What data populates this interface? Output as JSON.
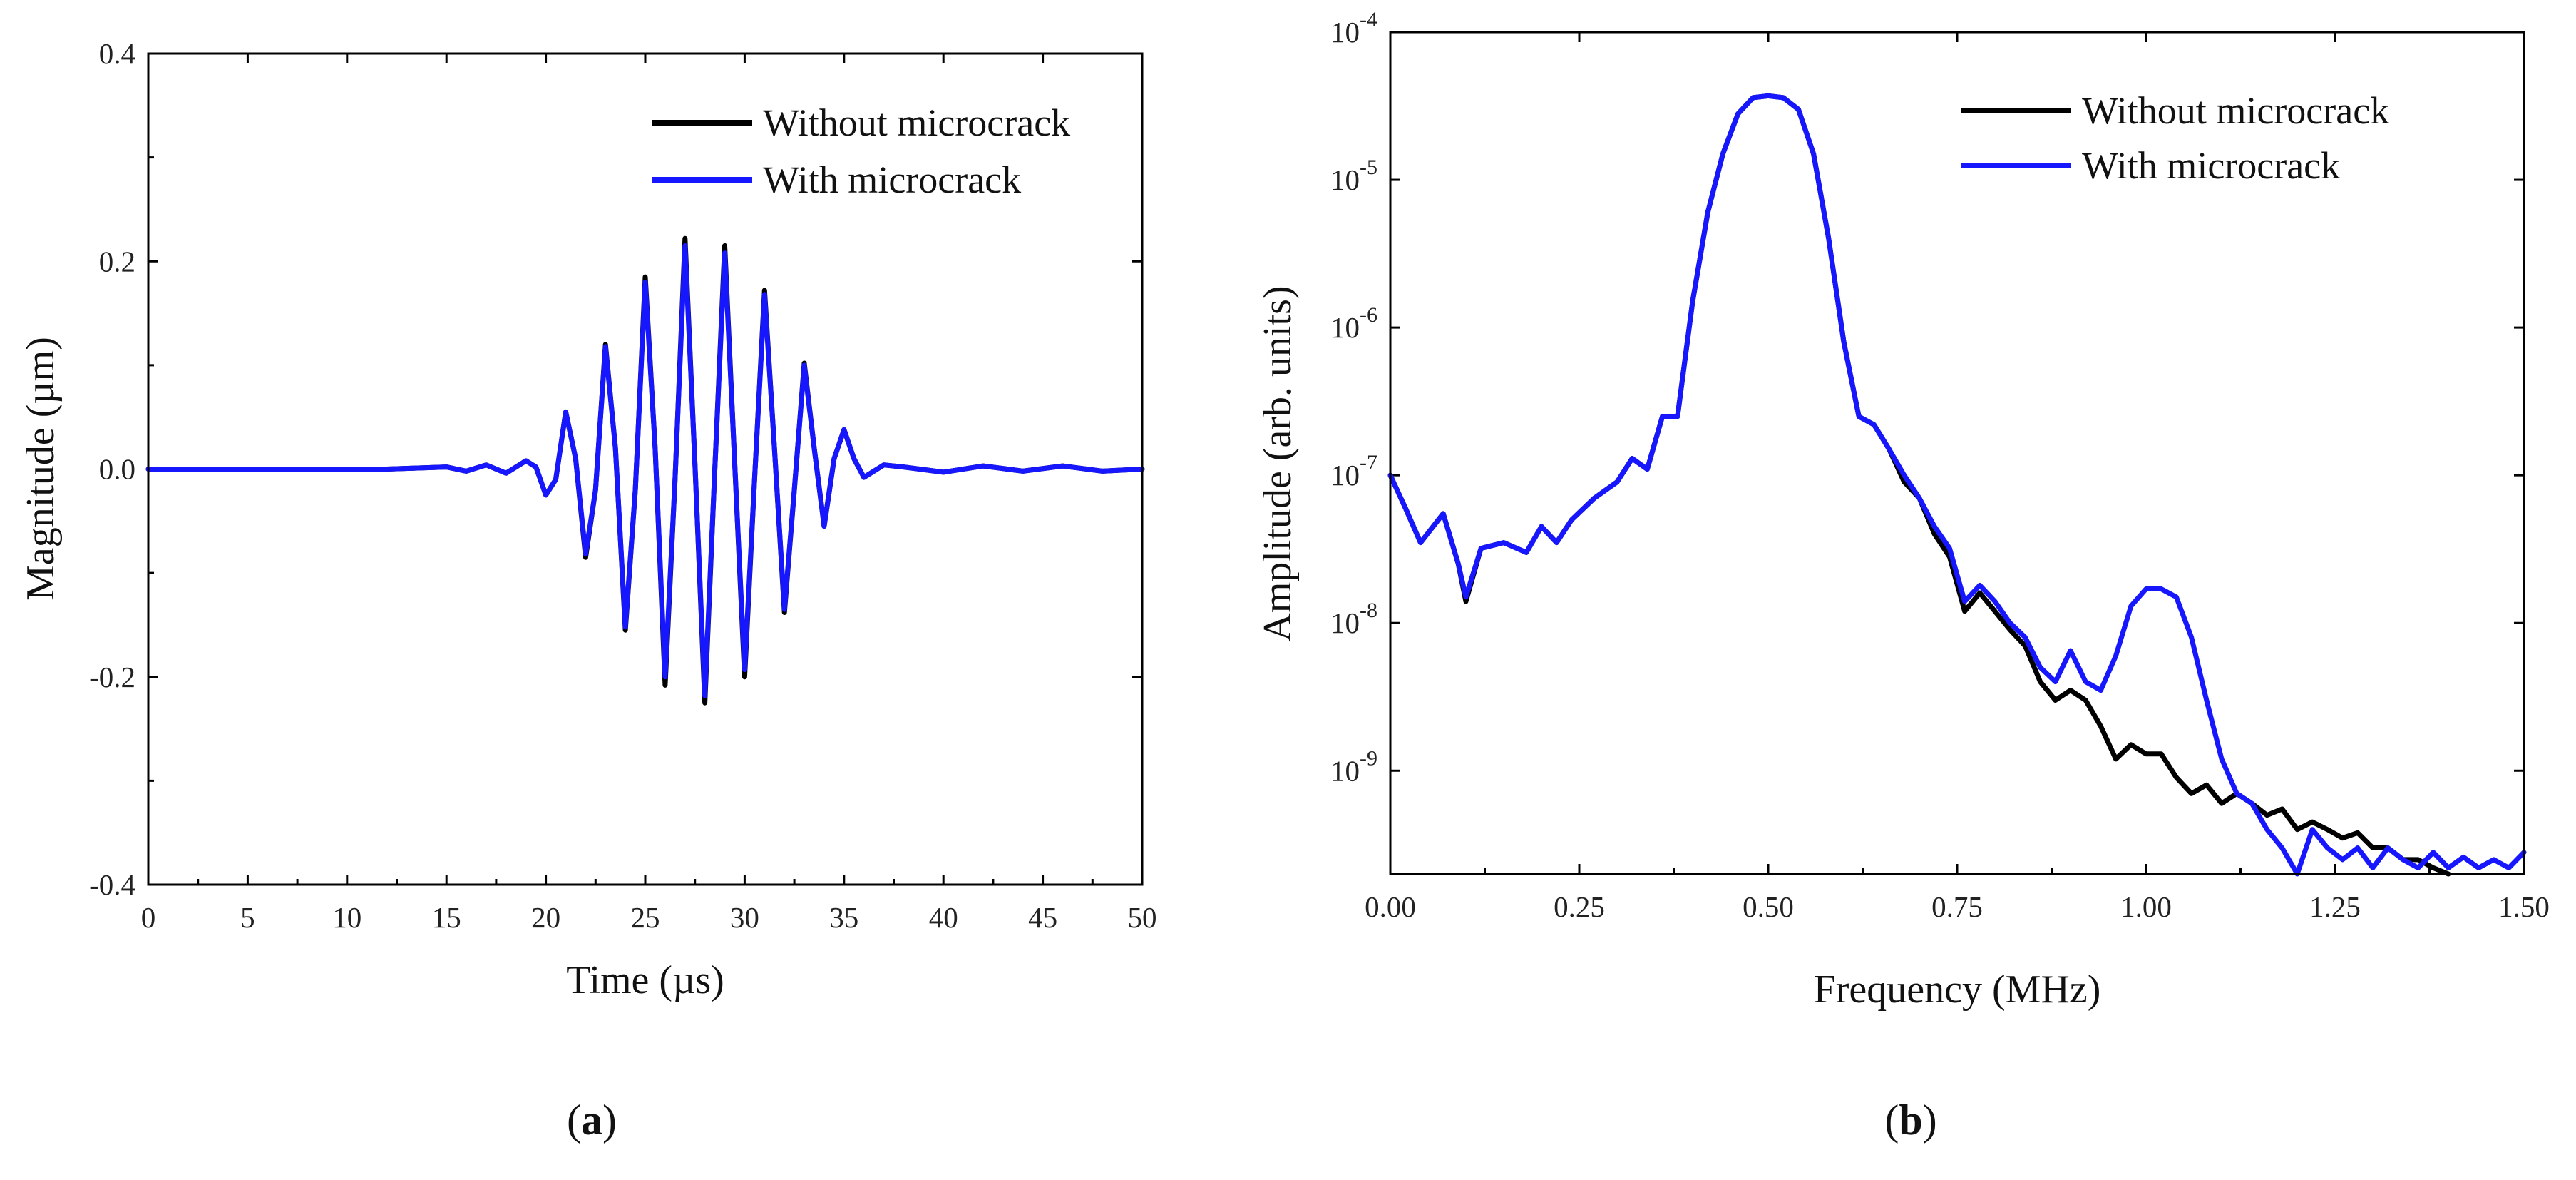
{
  "colors": {
    "series_without": "#000000",
    "series_with": "#1717ff",
    "axis": "#000000"
  },
  "chart_data": [
    {
      "id": "a",
      "caption": {
        "open": "(",
        "letter": "a",
        "close": ")"
      },
      "type": "line",
      "xlabel": "Time (µs)",
      "ylabel": "Magnitude (µm)",
      "xlim": [
        0,
        50
      ],
      "ylim": [
        -0.4,
        0.4
      ],
      "x_ticks": [
        0,
        5,
        10,
        15,
        20,
        25,
        30,
        35,
        40,
        45,
        50
      ],
      "x_tick_labels": [
        "0",
        "5",
        "10",
        "15",
        "20",
        "25",
        "30",
        "35",
        "40",
        "45",
        "50"
      ],
      "y_ticks": [
        -0.4,
        -0.2,
        0.0,
        0.2,
        0.4
      ],
      "y_tick_labels": [
        "-0.4",
        "-0.2",
        "0.0",
        "0.2",
        "0.4"
      ],
      "legend": {
        "placement": "top-right",
        "entries": [
          "Without microcrack",
          "With microcrack"
        ]
      },
      "series": [
        {
          "name": "Without microcrack",
          "color_key": "series_without",
          "x": [
            0,
            12,
            15,
            16,
            17,
            18,
            19,
            19.5,
            20,
            20.5,
            21,
            21.5,
            22,
            22.5,
            23,
            23.5,
            24,
            24.5,
            25,
            25.5,
            26,
            26.5,
            27,
            27.5,
            28,
            28.5,
            29,
            29.5,
            30,
            30.5,
            31,
            31.5,
            32,
            32.5,
            33,
            33.5,
            34,
            34.5,
            35,
            35.5,
            36,
            37,
            38,
            40,
            42,
            44,
            46,
            48,
            50
          ],
          "y": [
            0,
            0,
            0.002,
            -0.002,
            0.004,
            -0.004,
            0.008,
            0.002,
            -0.025,
            -0.01,
            0.055,
            0.01,
            -0.085,
            -0.02,
            0.12,
            0.02,
            -0.155,
            -0.02,
            0.185,
            0.02,
            -0.208,
            -0.01,
            0.222,
            0.005,
            -0.225,
            0.0,
            0.215,
            0.005,
            -0.2,
            -0.01,
            0.172,
            0.02,
            -0.138,
            -0.02,
            0.102,
            0.02,
            -0.055,
            0.01,
            0.038,
            0.01,
            -0.008,
            0.004,
            0.002,
            -0.003,
            0.003,
            -0.002,
            0.003,
            -0.002,
            0
          ]
        },
        {
          "name": "With microcrack",
          "color_key": "series_with",
          "x": [
            0,
            12,
            15,
            16,
            17,
            18,
            19,
            19.5,
            20,
            20.5,
            21,
            21.5,
            22,
            22.5,
            23,
            23.5,
            24,
            24.5,
            25,
            25.5,
            26,
            26.5,
            27,
            27.5,
            28,
            28.5,
            29,
            29.5,
            30,
            30.5,
            31,
            31.5,
            32,
            32.5,
            33,
            33.5,
            34,
            34.5,
            35,
            35.5,
            36,
            37,
            38,
            40,
            42,
            44,
            46,
            48,
            50
          ],
          "y": [
            0,
            0,
            0.002,
            -0.002,
            0.004,
            -0.004,
            0.008,
            0.002,
            -0.025,
            -0.01,
            0.055,
            0.01,
            -0.082,
            -0.02,
            0.118,
            0.02,
            -0.152,
            -0.02,
            0.18,
            0.02,
            -0.2,
            -0.01,
            0.215,
            0.005,
            -0.218,
            0.0,
            0.208,
            0.005,
            -0.193,
            -0.01,
            0.168,
            0.02,
            -0.135,
            -0.02,
            0.1,
            0.02,
            -0.055,
            0.01,
            0.038,
            0.01,
            -0.008,
            0.004,
            0.002,
            -0.003,
            0.003,
            -0.002,
            0.003,
            -0.002,
            0
          ]
        }
      ]
    },
    {
      "id": "b",
      "caption": {
        "open": "(",
        "letter": "b",
        "close": ")"
      },
      "type": "line",
      "xlabel": "Frequency (MHz)",
      "ylabel": "Amplitude (arb. units)",
      "xlim": [
        0,
        1.5
      ],
      "ylim": [
        2e-10,
        0.0001
      ],
      "yscale": "log",
      "x_ticks": [
        0,
        0.25,
        0.5,
        0.75,
        1.0,
        1.25,
        1.5
      ],
      "x_tick_labels": [
        "0.00",
        "0.25",
        "0.50",
        "0.75",
        "1.00",
        "1.25",
        "1.50"
      ],
      "y_ticks": [
        1e-09,
        1e-08,
        1e-07,
        1e-06,
        1e-05,
        0.0001
      ],
      "y_tick_labels": [
        {
          "base": "10",
          "exp": "-9"
        },
        {
          "base": "10",
          "exp": "-8"
        },
        {
          "base": "10",
          "exp": "-7"
        },
        {
          "base": "10",
          "exp": "-6"
        },
        {
          "base": "10",
          "exp": "-5"
        },
        {
          "base": "10",
          "exp": "-4"
        }
      ],
      "legend": {
        "placement": "top-right",
        "entries": [
          "Without microcrack",
          "With microcrack"
        ]
      },
      "series": [
        {
          "name": "Without microcrack",
          "color_key": "series_without",
          "x": [
            0,
            0.02,
            0.04,
            0.07,
            0.09,
            0.1,
            0.12,
            0.15,
            0.18,
            0.2,
            0.22,
            0.24,
            0.27,
            0.3,
            0.32,
            0.34,
            0.36,
            0.38,
            0.4,
            0.42,
            0.44,
            0.46,
            0.48,
            0.5,
            0.52,
            0.54,
            0.56,
            0.58,
            0.6,
            0.62,
            0.64,
            0.66,
            0.68,
            0.7,
            0.72,
            0.74,
            0.76,
            0.78,
            0.8,
            0.82,
            0.84,
            0.86,
            0.88,
            0.9,
            0.92,
            0.94,
            0.96,
            0.98,
            1.0,
            1.02,
            1.04,
            1.06,
            1.08,
            1.1,
            1.12,
            1.14,
            1.16,
            1.18,
            1.2,
            1.22,
            1.24,
            1.26,
            1.28,
            1.3,
            1.32,
            1.34,
            1.36,
            1.38,
            1.4
          ],
          "y": [
            1e-07,
            6e-08,
            3.5e-08,
            5.5e-08,
            2.5e-08,
            1.4e-08,
            3.2e-08,
            3.5e-08,
            3e-08,
            4.5e-08,
            3.5e-08,
            5e-08,
            7e-08,
            9e-08,
            1.3e-07,
            1.1e-07,
            2.5e-07,
            2.5e-07,
            1.5e-06,
            6e-06,
            1.5e-05,
            2.8e-05,
            3.6e-05,
            3.7e-05,
            3.6e-05,
            3e-05,
            1.5e-05,
            4e-06,
            8e-07,
            2.5e-07,
            2.2e-07,
            1.5e-07,
            9e-08,
            7e-08,
            4e-08,
            2.8e-08,
            1.2e-08,
            1.6e-08,
            1.2e-08,
            9e-09,
            7e-09,
            4e-09,
            3e-09,
            3.5e-09,
            3e-09,
            2e-09,
            1.2e-09,
            1.5e-09,
            1.3e-09,
            1.3e-09,
            9e-10,
            7e-10,
            8e-10,
            6e-10,
            7e-10,
            6e-10,
            5e-10,
            5.5e-10,
            4e-10,
            4.5e-10,
            4e-10,
            3.5e-10,
            3.8e-10,
            3e-10,
            3e-10,
            2.5e-10,
            2.5e-10,
            2.2e-10,
            2e-10
          ]
        },
        {
          "name": "With microcrack",
          "color_key": "series_with",
          "x": [
            0,
            0.02,
            0.04,
            0.07,
            0.09,
            0.1,
            0.12,
            0.15,
            0.18,
            0.2,
            0.22,
            0.24,
            0.27,
            0.3,
            0.32,
            0.34,
            0.36,
            0.38,
            0.4,
            0.42,
            0.44,
            0.46,
            0.48,
            0.5,
            0.52,
            0.54,
            0.56,
            0.58,
            0.6,
            0.62,
            0.64,
            0.66,
            0.68,
            0.7,
            0.72,
            0.74,
            0.76,
            0.78,
            0.8,
            0.82,
            0.84,
            0.86,
            0.88,
            0.9,
            0.92,
            0.94,
            0.96,
            0.98,
            1.0,
            1.02,
            1.04,
            1.06,
            1.08,
            1.1,
            1.12,
            1.14,
            1.16,
            1.18,
            1.2,
            1.22,
            1.24,
            1.26,
            1.28,
            1.3,
            1.32,
            1.34,
            1.36,
            1.38,
            1.4,
            1.42,
            1.44,
            1.46,
            1.48,
            1.5
          ],
          "y": [
            1e-07,
            6e-08,
            3.5e-08,
            5.5e-08,
            2.5e-08,
            1.5e-08,
            3.2e-08,
            3.5e-08,
            3e-08,
            4.5e-08,
            3.5e-08,
            5e-08,
            7e-08,
            9e-08,
            1.3e-07,
            1.1e-07,
            2.5e-07,
            2.5e-07,
            1.5e-06,
            6e-06,
            1.5e-05,
            2.8e-05,
            3.6e-05,
            3.7e-05,
            3.6e-05,
            3e-05,
            1.5e-05,
            4e-06,
            8e-07,
            2.5e-07,
            2.2e-07,
            1.5e-07,
            1e-07,
            7e-08,
            4.5e-08,
            3.2e-08,
            1.4e-08,
            1.8e-08,
            1.4e-08,
            1e-08,
            8e-09,
            5e-09,
            4e-09,
            6.5e-09,
            4e-09,
            3.5e-09,
            6e-09,
            1.3e-08,
            1.7e-08,
            1.7e-08,
            1.5e-08,
            8e-09,
            3e-09,
            1.2e-09,
            7e-10,
            6e-10,
            4e-10,
            3e-10,
            2e-10,
            4e-10,
            3e-10,
            2.5e-10,
            3e-10,
            2.2e-10,
            3e-10,
            2.5e-10,
            2.2e-10,
            2.8e-10,
            2.2e-10,
            2.6e-10,
            2.2e-10,
            2.5e-10,
            2.2e-10,
            2.8e-10
          ]
        }
      ]
    }
  ]
}
